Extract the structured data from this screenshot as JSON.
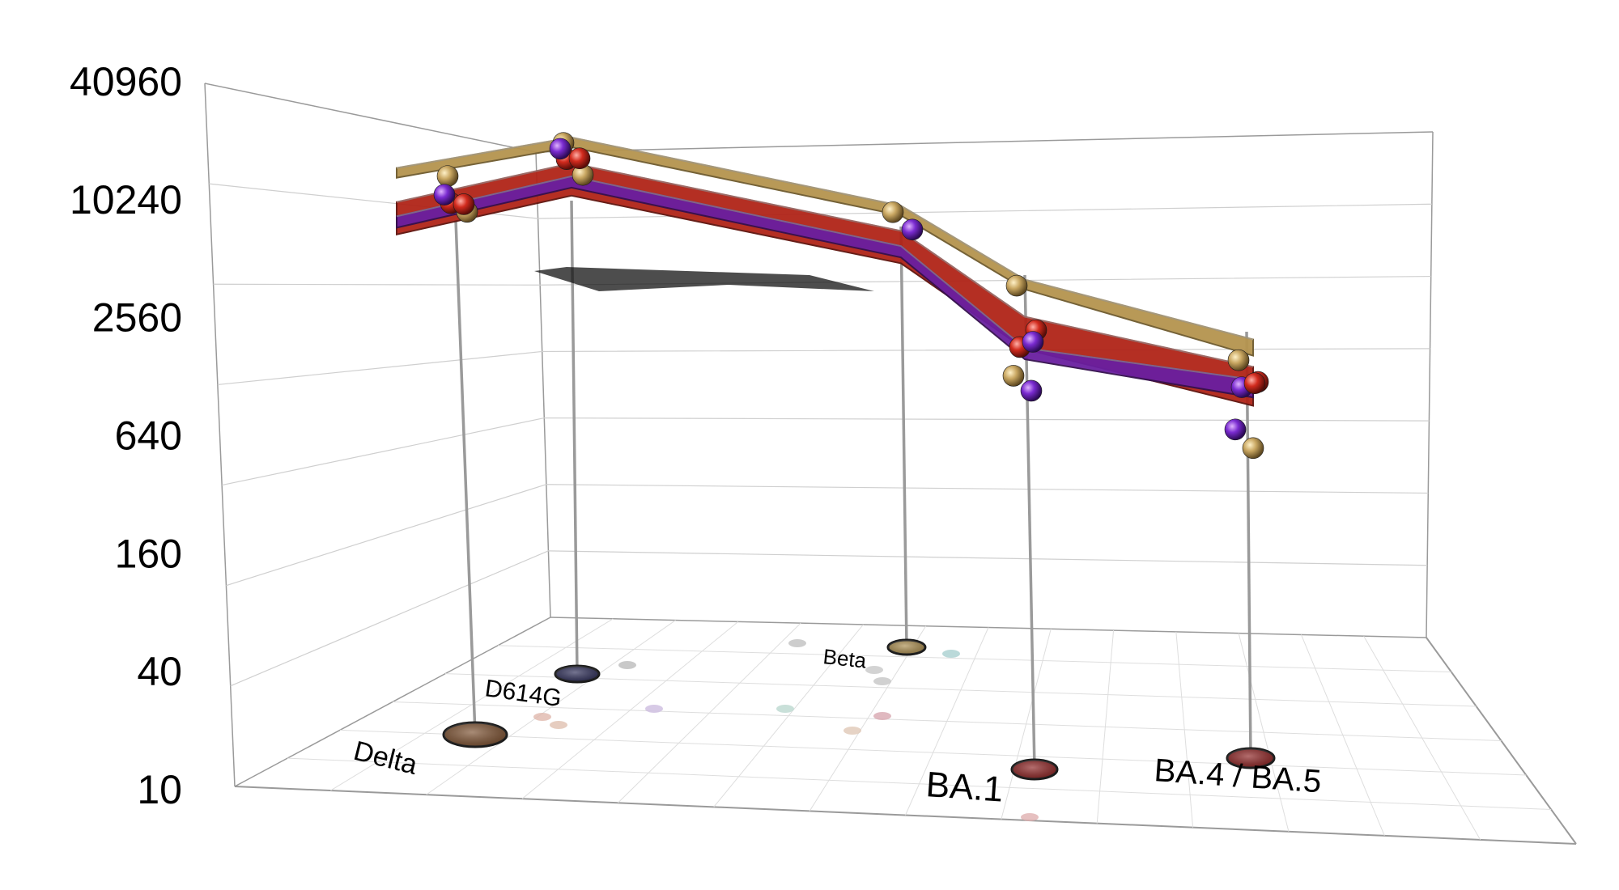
{
  "chart_data": {
    "type": "3d-surface-scatter",
    "title": "",
    "y_axis": {
      "scale": "log2",
      "ticks": [
        10,
        40,
        160,
        640,
        2560,
        10240,
        40960
      ],
      "tick_labels": [
        "10",
        "40",
        "160",
        "640",
        "2560",
        "10240",
        "40960"
      ],
      "ylim": [
        10,
        40960
      ]
    },
    "grid": true,
    "variants": [
      {
        "name": "Delta",
        "color": "#7a4e2d"
      },
      {
        "name": "D614G",
        "color": "#2a2a55"
      },
      {
        "name": "Beta",
        "color": "#a88a4a"
      },
      {
        "name": "BA.1",
        "color": "#8b1f1f"
      },
      {
        "name": "BA.4 / BA.5",
        "color": "#8b1f1f"
      }
    ],
    "series": [
      {
        "color": "#b5944f",
        "values": [
          11500,
          16000,
          10000,
          4200,
          2900
        ]
      },
      {
        "color": "#b02418",
        "values": [
          8800,
          13500,
          8500,
          3100,
          2400
        ]
      },
      {
        "color": "#6a1fa0",
        "values": [
          9000,
          14000,
          8600,
          2600,
          2500
        ]
      }
    ],
    "points": [
      {
        "variant": "Delta",
        "color": "#c9a762",
        "value": 11500
      },
      {
        "variant": "Delta",
        "color": "#c9a762",
        "value": 8000
      },
      {
        "variant": "Delta",
        "color": "#d22b1e",
        "value": 9200
      },
      {
        "variant": "Delta",
        "color": "#d22b1e",
        "value": 7800
      },
      {
        "variant": "Delta",
        "color": "#7a2bd0",
        "value": 9600
      },
      {
        "variant": "D614G",
        "color": "#c9a762",
        "value": 16500
      },
      {
        "variant": "D614G",
        "color": "#c9a762",
        "value": 12000
      },
      {
        "variant": "D614G",
        "color": "#d22b1e",
        "value": 15000
      },
      {
        "variant": "D614G",
        "color": "#d22b1e",
        "value": 13000
      },
      {
        "variant": "D614G",
        "color": "#7a2bd0",
        "value": 16000
      },
      {
        "variant": "Beta",
        "color": "#c9a762",
        "value": 10200
      },
      {
        "variant": "Beta",
        "color": "#7a2bd0",
        "value": 8800
      },
      {
        "variant": "BA.1",
        "color": "#c9a762",
        "value": 4300
      },
      {
        "variant": "BA.1",
        "color": "#d22b1e",
        "value": 2700
      },
      {
        "variant": "BA.1",
        "color": "#d22b1e",
        "value": 2300
      },
      {
        "variant": "BA.1",
        "color": "#7a2bd0",
        "value": 2100
      },
      {
        "variant": "BA.1",
        "color": "#c9a762",
        "value": 1550
      },
      {
        "variant": "BA.1",
        "color": "#7a2bd0",
        "value": 1350
      },
      {
        "variant": "BA.4 / BA.5",
        "color": "#c9a762",
        "value": 2500
      },
      {
        "variant": "BA.4 / BA.5",
        "color": "#d22b1e",
        "value": 2050
      },
      {
        "variant": "BA.4 / BA.5",
        "color": "#7a2bd0",
        "value": 2000
      },
      {
        "variant": "BA.4 / BA.5",
        "color": "#d22b1e",
        "value": 1800
      },
      {
        "variant": "BA.4 / BA.5",
        "color": "#7a2bd0",
        "value": 1150
      },
      {
        "variant": "BA.4 / BA.5",
        "color": "#c9a762",
        "value": 960
      }
    ]
  }
}
